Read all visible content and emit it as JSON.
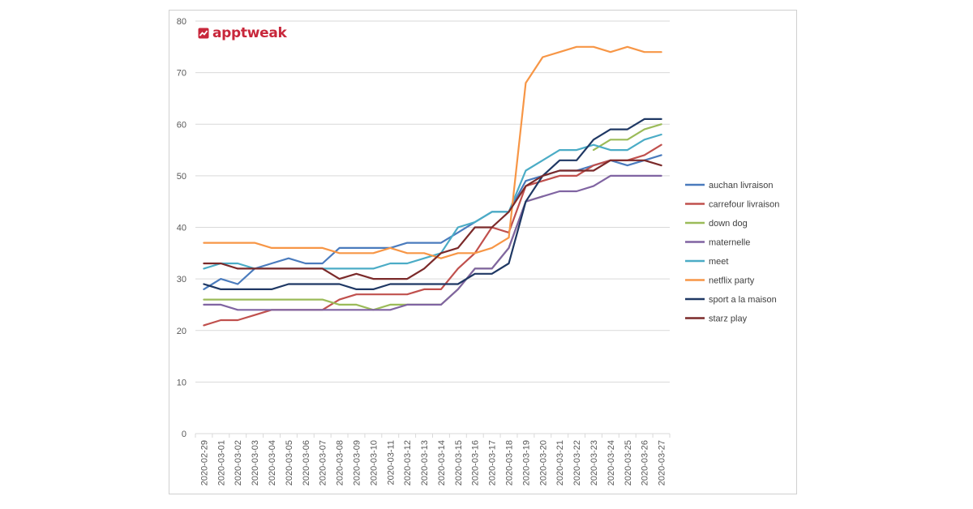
{
  "brand": {
    "name": "apptweak",
    "color": "#c8273b",
    "icon": "trend-chart-icon"
  },
  "chart_data": {
    "type": "line",
    "title": "",
    "xlabel": "",
    "ylabel": "",
    "ylim": [
      0,
      80
    ],
    "yticks": [
      0,
      10,
      20,
      30,
      40,
      50,
      60,
      70,
      80
    ],
    "grid": "horizontal",
    "legend": "right",
    "x": [
      "2020-02-29",
      "2020-03-01",
      "2020-03-02",
      "2020-03-03",
      "2020-03-04",
      "2020-03-05",
      "2020-03-06",
      "2020-03-07",
      "2020-03-08",
      "2020-03-09",
      "2020-03-10",
      "2020-03-11",
      "2020-03-12",
      "2020-03-13",
      "2020-03-14",
      "2020-03-15",
      "2020-03-16",
      "2020-03-17",
      "2020-03-18",
      "2020-03-19",
      "2020-03-20",
      "2020-03-21",
      "2020-03-22",
      "2020-03-23",
      "2020-03-24",
      "2020-03-25",
      "2020-03-26",
      "2020-03-27"
    ],
    "series": [
      {
        "name": "auchan livraison",
        "color": "#4a7bbd",
        "values": [
          28,
          30,
          29,
          32,
          33,
          34,
          33,
          33,
          36,
          36,
          36,
          36,
          37,
          37,
          37,
          39,
          41,
          43,
          43,
          49,
          50,
          51,
          51,
          52,
          53,
          52,
          53,
          54
        ]
      },
      {
        "name": "carrefour livraison",
        "color": "#c0504d",
        "values": [
          21,
          22,
          22,
          23,
          24,
          24,
          24,
          24,
          26,
          27,
          27,
          27,
          27,
          28,
          28,
          32,
          35,
          40,
          39,
          48,
          49,
          50,
          50,
          52,
          53,
          53,
          54,
          56
        ]
      },
      {
        "name": "down dog",
        "color": "#9bbb59",
        "values": [
          26,
          26,
          26,
          26,
          26,
          26,
          26,
          26,
          25,
          25,
          24,
          25,
          25,
          25,
          25,
          28,
          32,
          32,
          36,
          45,
          46,
          null,
          null,
          55,
          57,
          57,
          59,
          60
        ]
      },
      {
        "name": "maternelle",
        "color": "#8064a2",
        "values": [
          25,
          25,
          24,
          24,
          24,
          24,
          24,
          24,
          24,
          24,
          24,
          24,
          25,
          25,
          25,
          28,
          32,
          32,
          36,
          45,
          46,
          47,
          47,
          48,
          50,
          50,
          50,
          50
        ]
      },
      {
        "name": "meet",
        "color": "#4bacc6",
        "values": [
          32,
          33,
          33,
          32,
          32,
          32,
          32,
          32,
          32,
          32,
          32,
          33,
          33,
          34,
          35,
          40,
          41,
          43,
          43,
          51,
          53,
          55,
          55,
          56,
          55,
          55,
          57,
          58
        ]
      },
      {
        "name": "netflix party",
        "color": "#f79646",
        "values": [
          37,
          37,
          37,
          37,
          36,
          36,
          36,
          36,
          35,
          35,
          35,
          36,
          35,
          35,
          34,
          35,
          35,
          36,
          38,
          68,
          73,
          74,
          75,
          75,
          74,
          75,
          74,
          74
        ]
      },
      {
        "name": "sport a la maison",
        "color": "#1f3864",
        "values": [
          29,
          28,
          28,
          28,
          28,
          29,
          29,
          29,
          29,
          28,
          28,
          29,
          29,
          29,
          29,
          29,
          31,
          31,
          33,
          45,
          50,
          53,
          53,
          57,
          59,
          59,
          61,
          61
        ]
      },
      {
        "name": "starz play",
        "color": "#7b2a2a",
        "values": [
          33,
          33,
          32,
          32,
          32,
          32,
          32,
          32,
          30,
          31,
          30,
          30,
          30,
          32,
          35,
          36,
          40,
          40,
          43,
          48,
          50,
          51,
          51,
          51,
          53,
          53,
          53,
          52
        ]
      }
    ]
  }
}
